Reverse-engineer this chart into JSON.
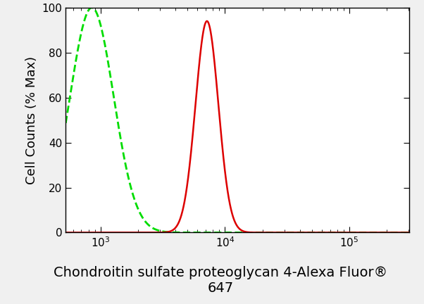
{
  "title_line1": "Chondroitin sulfate proteoglycan 4-Alexa Fluor®",
  "title_line2": "647",
  "ylabel": "Cell Counts (% Max)",
  "xlim_log": [
    2.72,
    5.48
  ],
  "ylim": [
    0,
    100
  ],
  "xticks": [
    1000,
    10000,
    100000
  ],
  "yticks": [
    0,
    20,
    40,
    60,
    80,
    100
  ],
  "background_color": "#f0f0f0",
  "plot_bg_color": "#ffffff",
  "green_color": "#00dd00",
  "red_color": "#dd0000",
  "green_peak_log": 2.93,
  "green_sigma_log": 0.175,
  "green_peak_height": 100,
  "red_peak_log": 3.855,
  "red_sigma_log": 0.092,
  "red_peak_height": 94,
  "title_fontsize": 14,
  "axis_label_fontsize": 13,
  "tick_fontsize": 11
}
